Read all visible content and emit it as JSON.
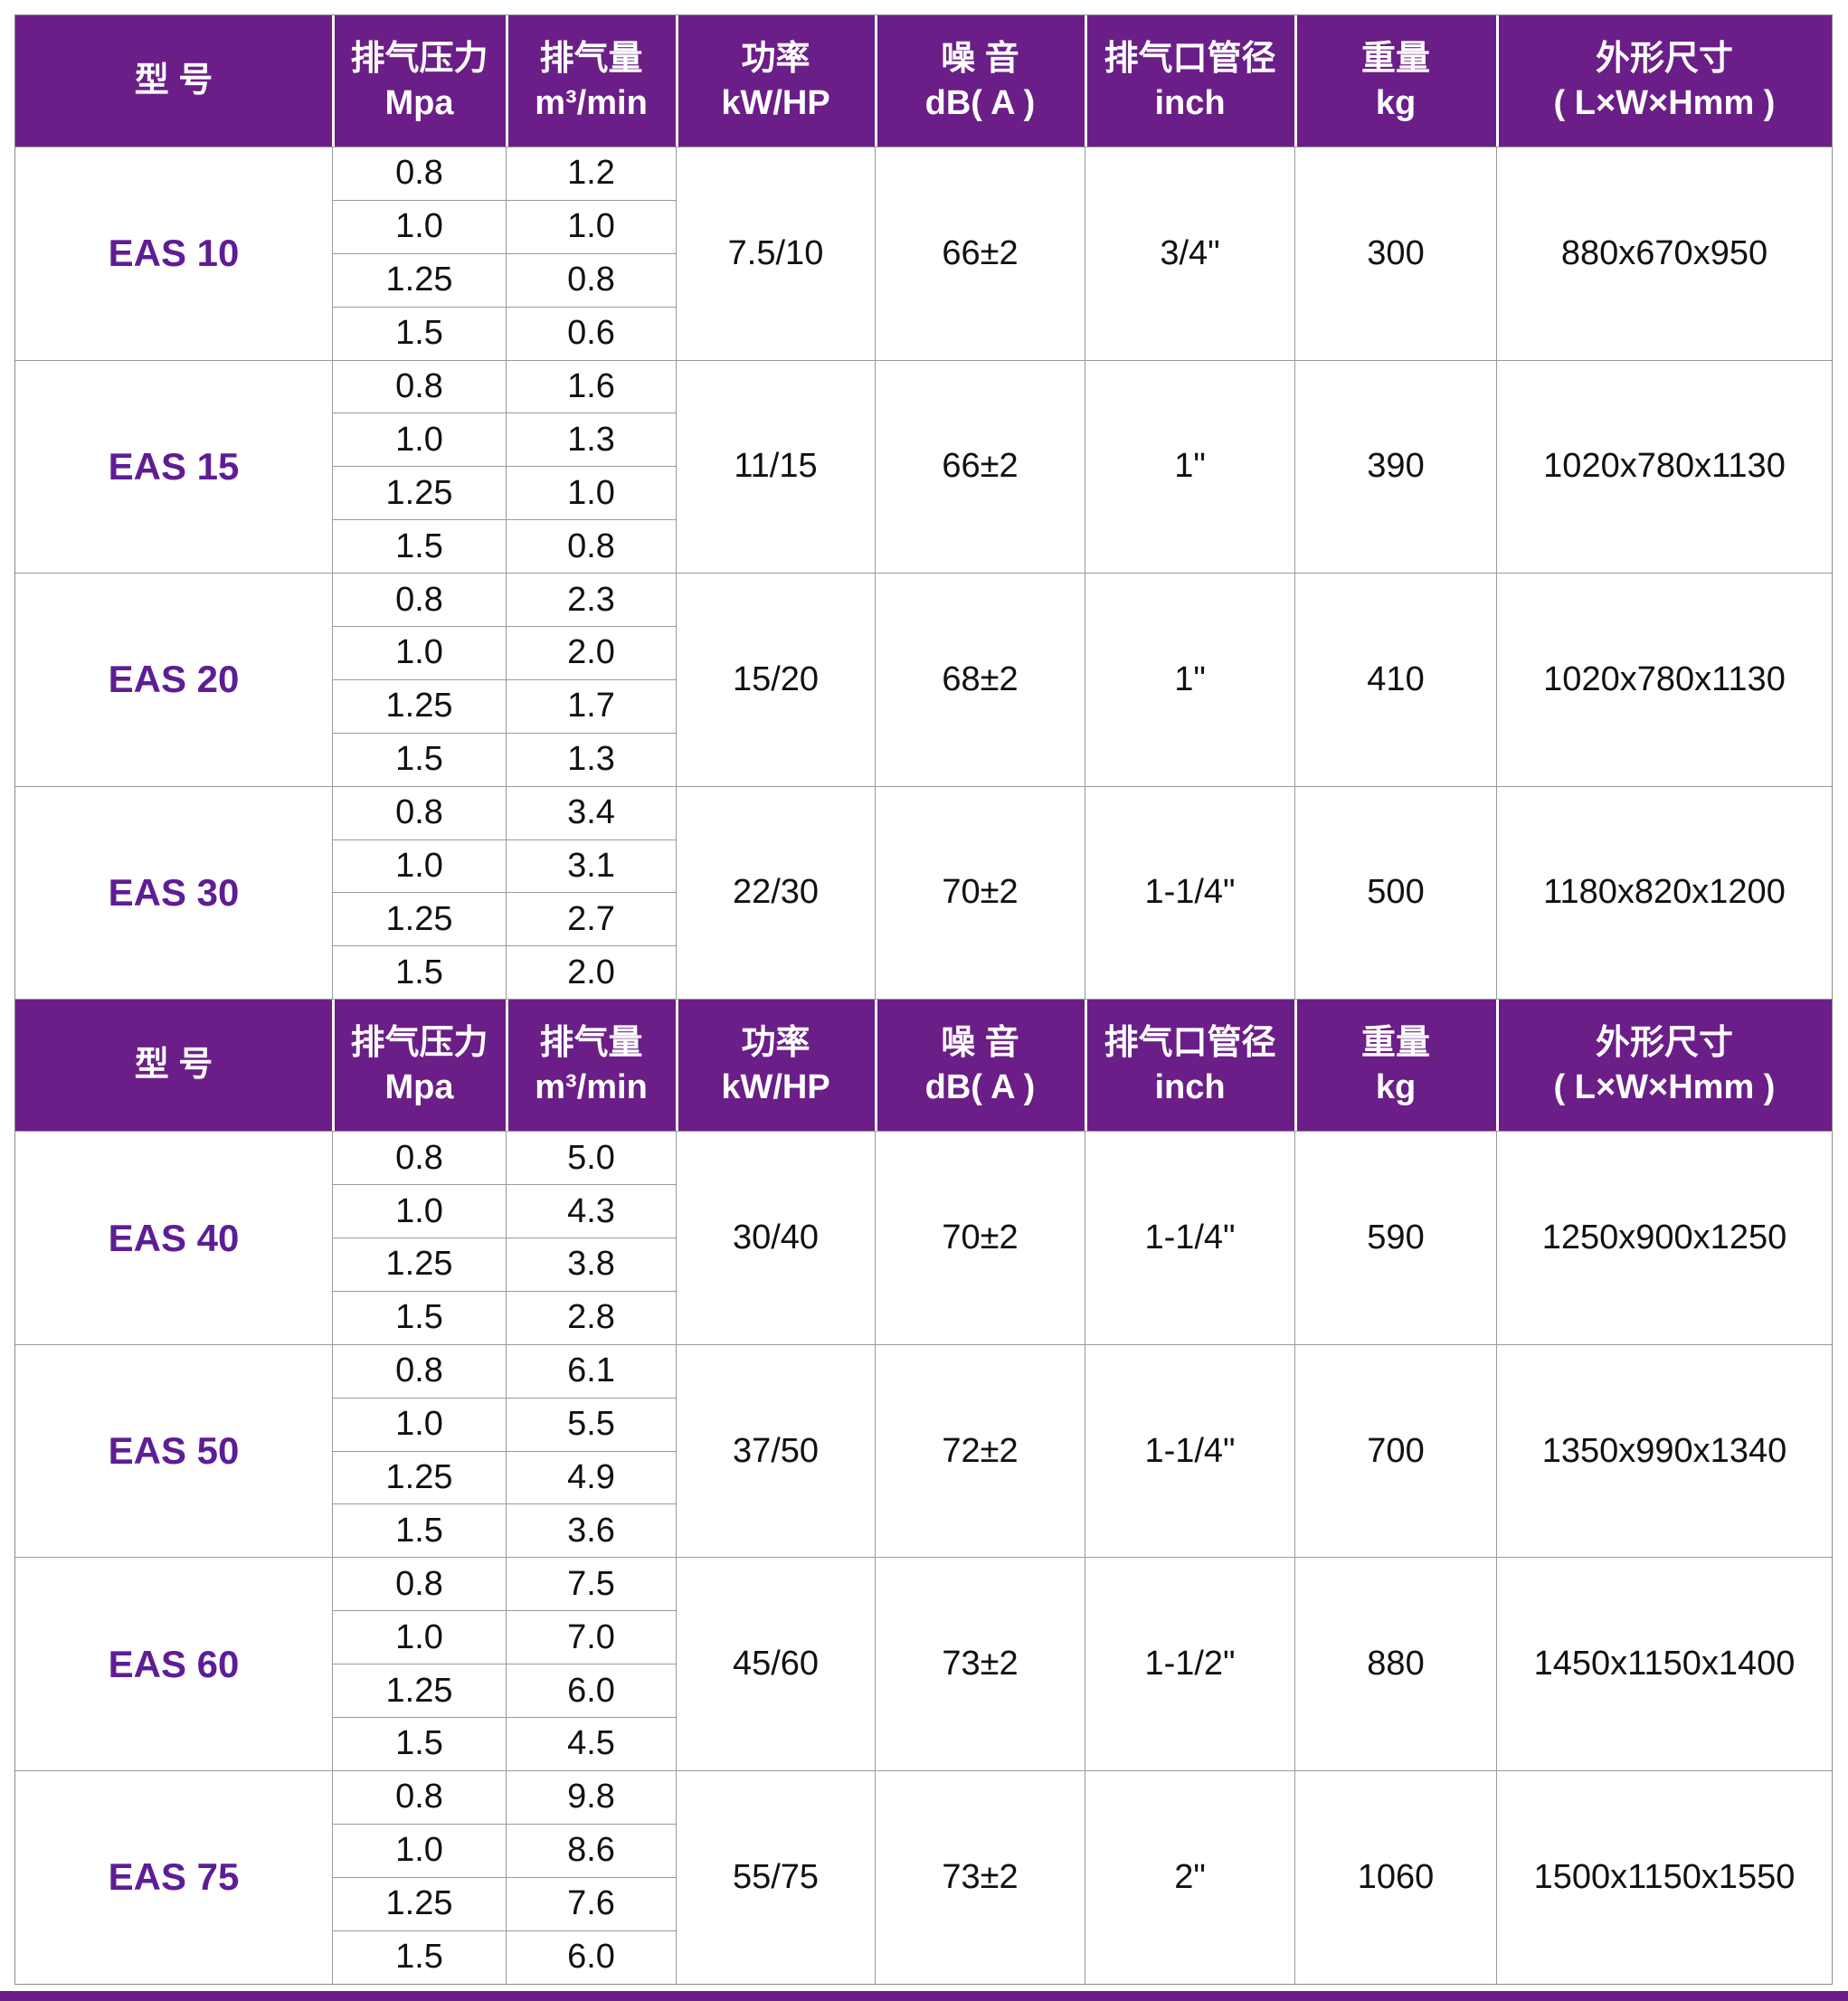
{
  "table": {
    "columns": [
      {
        "id": "model",
        "line1": "型  号",
        "line2": ""
      },
      {
        "id": "pressure",
        "line1": "排气压力",
        "line2": "Mpa"
      },
      {
        "id": "flow",
        "line1": "排气量",
        "line2": "m³/min"
      },
      {
        "id": "power",
        "line1": "功率",
        "line2": "kW/HP"
      },
      {
        "id": "noise",
        "line1": "噪 音",
        "line2": "dB( A )"
      },
      {
        "id": "pipe",
        "line1": "排气口管径",
        "line2": "inch"
      },
      {
        "id": "weight",
        "line1": "重量",
        "line2": "kg"
      },
      {
        "id": "dims",
        "line1": "外形尺寸",
        "line2": "( L×W×Hmm )"
      }
    ],
    "groups": [
      {
        "model": "EAS 10",
        "pressures": [
          "0.8",
          "1.0",
          "1.25",
          "1.5"
        ],
        "flows": [
          "1.2",
          "1.0",
          "0.8",
          "0.6"
        ],
        "power": "7.5/10",
        "noise": "66±2",
        "pipe": "3/4\"",
        "weight": "300",
        "dims": "880x670x950"
      },
      {
        "model": "EAS 15",
        "pressures": [
          "0.8",
          "1.0",
          "1.25",
          "1.5"
        ],
        "flows": [
          "1.6",
          "1.3",
          "1.0",
          "0.8"
        ],
        "power": "11/15",
        "noise": "66±2",
        "pipe": "1\"",
        "weight": "390",
        "dims": "1020x780x1130"
      },
      {
        "model": "EAS 20",
        "pressures": [
          "0.8",
          "1.0",
          "1.25",
          "1.5"
        ],
        "flows": [
          "2.3",
          "2.0",
          "1.7",
          "1.3"
        ],
        "power": "15/20",
        "noise": "68±2",
        "pipe": "1\"",
        "weight": "410",
        "dims": "1020x780x1130"
      },
      {
        "model": "EAS 30",
        "pressures": [
          "0.8",
          "1.0",
          "1.25",
          "1.5"
        ],
        "flows": [
          "3.4",
          "3.1",
          "2.7",
          "2.0"
        ],
        "power": "22/30",
        "noise": "70±2",
        "pipe": "1-1/4\"",
        "weight": "500",
        "dims": "1180x820x1200"
      },
      {
        "model": "EAS 40",
        "pressures": [
          "0.8",
          "1.0",
          "1.25",
          "1.5"
        ],
        "flows": [
          "5.0",
          "4.3",
          "3.8",
          "2.8"
        ],
        "power": "30/40",
        "noise": "70±2",
        "pipe": "1-1/4\"",
        "weight": "590",
        "dims": "1250x900x1250"
      },
      {
        "model": "EAS 50",
        "pressures": [
          "0.8",
          "1.0",
          "1.25",
          "1.5"
        ],
        "flows": [
          "6.1",
          "5.5",
          "4.9",
          "3.6"
        ],
        "power": "37/50",
        "noise": "72±2",
        "pipe": "1-1/4\"",
        "weight": "700",
        "dims": "1350x990x1340"
      },
      {
        "model": "EAS 60",
        "pressures": [
          "0.8",
          "1.0",
          "1.25",
          "1.5"
        ],
        "flows": [
          "7.5",
          "7.0",
          "6.0",
          "4.5"
        ],
        "power": "45/60",
        "noise": "73±2",
        "pipe": "1-1/2\"",
        "weight": "880",
        "dims": "1450x1150x1400"
      },
      {
        "model": "EAS 75",
        "pressures": [
          "0.8",
          "1.0",
          "1.25",
          "1.5"
        ],
        "flows": [
          "9.8",
          "8.6",
          "7.6",
          "6.0"
        ],
        "power": "55/75",
        "noise": "73±2",
        "pipe": "2\"",
        "weight": "1060",
        "dims": "1500x1150x1550"
      }
    ],
    "sections": [
      [
        0,
        1,
        2,
        3
      ],
      [
        4,
        5,
        6,
        7
      ]
    ]
  },
  "colors": {
    "header_bg": "#6B1E87",
    "model_text": "#5E1D96",
    "grid_line": "#9a9a9a",
    "accent_bar": "#6B1E87"
  }
}
